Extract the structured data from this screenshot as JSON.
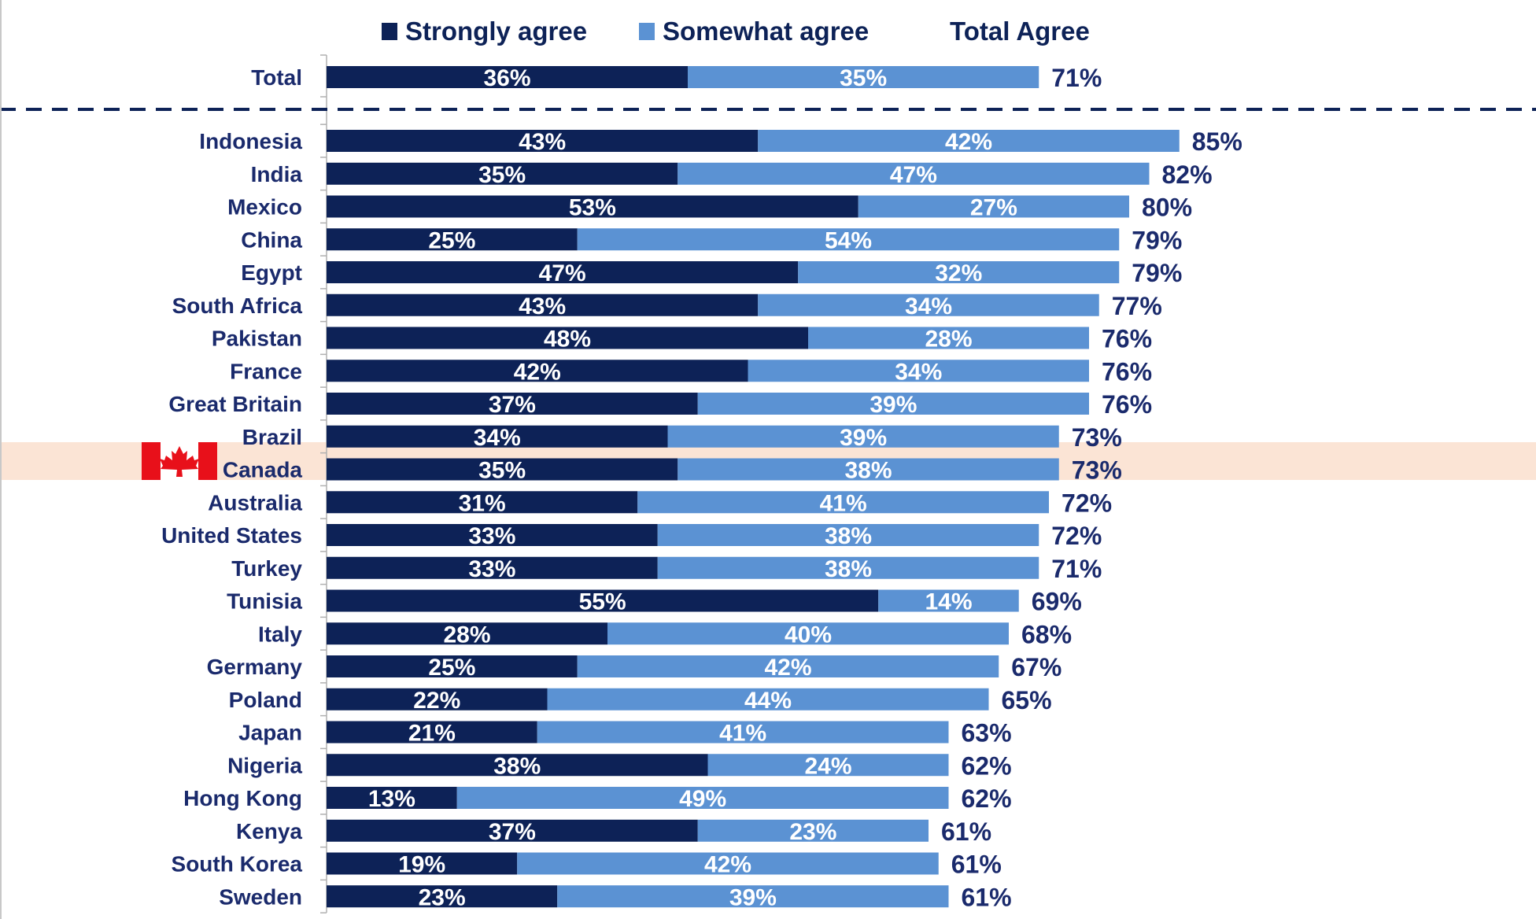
{
  "chart_data": {
    "type": "bar",
    "orientation": "horizontal",
    "stacked": true,
    "legend": {
      "position": "top",
      "entries": [
        {
          "label": "Strongly agree",
          "color": "#0d2257"
        },
        {
          "label": "Somewhat agree",
          "color": "#5b92d3"
        }
      ],
      "total_label": "Total Agree"
    },
    "colors": {
      "strongly": "#0d2257",
      "somewhat": "#5b92d3",
      "text": "#1a2a6c",
      "highlight": "#fbe4d5",
      "flag_red": "#e8101a"
    },
    "total_row": {
      "category": "Total",
      "strongly": 36,
      "somewhat": 35,
      "total": 71,
      "labels": {
        "strongly": "36%",
        "somewhat": "35%",
        "total": "71%"
      }
    },
    "highlight_category": "Canada",
    "highlight_icon": "canada-flag-icon",
    "categories": [
      "Indonesia",
      "India",
      "Mexico",
      "China",
      "Egypt",
      "South Africa",
      "Pakistan",
      "France",
      "Great Britain",
      "Brazil",
      "Canada",
      "Australia",
      "United States",
      "Turkey",
      "Tunisia",
      "Italy",
      "Germany",
      "Poland",
      "Japan",
      "Nigeria",
      "Hong Kong",
      "Kenya",
      "South Korea",
      "Sweden"
    ],
    "series": [
      {
        "name": "Strongly agree",
        "values": [
          43,
          35,
          53,
          25,
          47,
          43,
          48,
          42,
          37,
          34,
          35,
          31,
          33,
          33,
          55,
          28,
          25,
          22,
          21,
          38,
          13,
          37,
          19,
          23
        ],
        "labels": [
          "43%",
          "35%",
          "53%",
          "25%",
          "47%",
          "43%",
          "48%",
          "42%",
          "37%",
          "34%",
          "35%",
          "31%",
          "33%",
          "33%",
          "55%",
          "28%",
          "25%",
          "22%",
          "21%",
          "38%",
          "13%",
          "37%",
          "19%",
          "23%"
        ]
      },
      {
        "name": "Somewhat agree",
        "values": [
          42,
          47,
          27,
          54,
          32,
          34,
          28,
          34,
          39,
          39,
          38,
          41,
          38,
          38,
          14,
          40,
          42,
          44,
          41,
          24,
          49,
          23,
          42,
          39
        ],
        "labels": [
          "42%",
          "47%",
          "27%",
          "54%",
          "32%",
          "34%",
          "28%",
          "34%",
          "39%",
          "39%",
          "38%",
          "41%",
          "38%",
          "38%",
          "14%",
          "40%",
          "42%",
          "44%",
          "41%",
          "24%",
          "49%",
          "23%",
          "42%",
          "39%"
        ]
      }
    ],
    "totals": [
      85,
      82,
      80,
      79,
      79,
      77,
      76,
      76,
      76,
      73,
      73,
      72,
      72,
      71,
      69,
      68,
      67,
      65,
      63,
      62,
      62,
      61,
      61,
      61
    ],
    "total_labels": [
      "85%",
      "82%",
      "80%",
      "79%",
      "79%",
      "77%",
      "76%",
      "76%",
      "76%",
      "73%",
      "73%",
      "72%",
      "72%",
      "71%",
      "69%",
      "68%",
      "67%",
      "65%",
      "63%",
      "62%",
      "62%",
      "61%",
      "61%",
      "61%"
    ],
    "xlim": [
      0,
      100
    ]
  }
}
